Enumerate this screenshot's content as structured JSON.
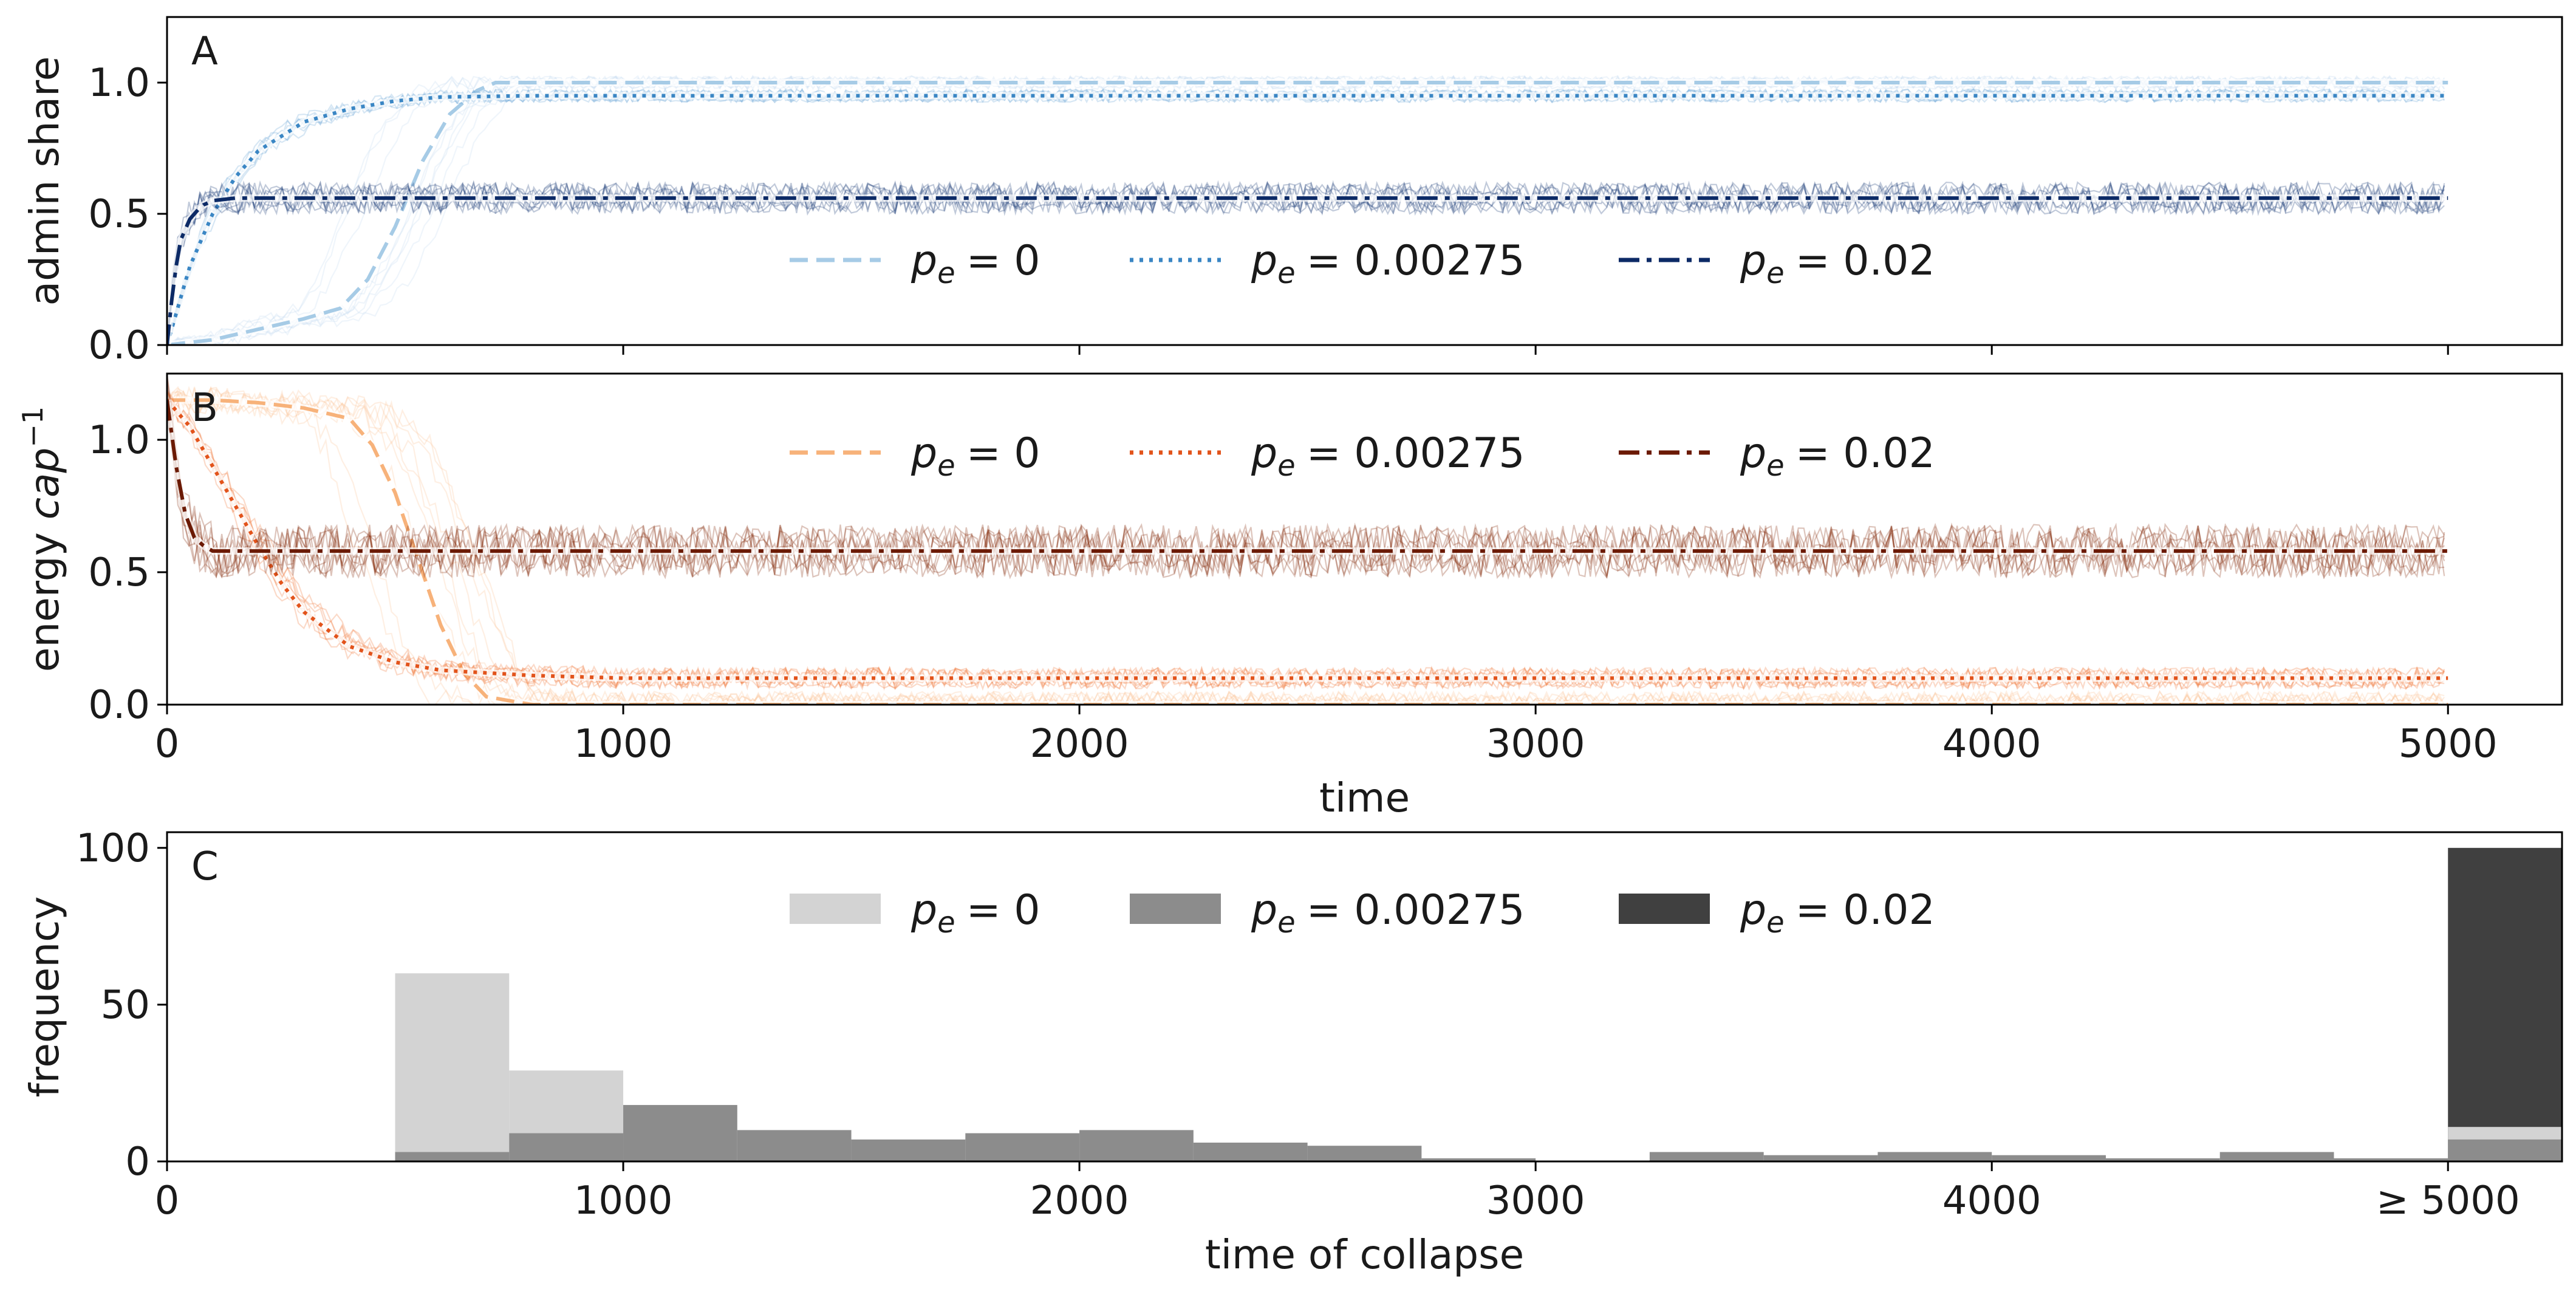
{
  "chart_data": [
    {
      "panel": "A",
      "type": "line",
      "ylabel": "admin share",
      "xlim": [
        0,
        5250
      ],
      "ylim": [
        0,
        1.25
      ],
      "yticks": [
        "0.0",
        "0.5",
        "1.0"
      ],
      "legend_placement": "center",
      "series": [
        {
          "name": "p_e = 0",
          "legend_sym": "p",
          "legend_sub": "e",
          "legend_val": "= 0",
          "style": "dashed",
          "color": "#a6cbe6",
          "band_color": "#c6dcef",
          "t": [
            0,
            100,
            200,
            300,
            380,
            440,
            500,
            560,
            620,
            680,
            720,
            800,
            5000
          ],
          "y": [
            0.0,
            0.02,
            0.06,
            0.1,
            0.14,
            0.25,
            0.45,
            0.7,
            0.88,
            0.97,
            1.0,
            1.0,
            1.0
          ]
        },
        {
          "name": "p_e = 0.00275",
          "legend_sym": "p",
          "legend_sub": "e",
          "legend_val": "= 0.00275",
          "style": "dotted",
          "color": "#3a86c4",
          "band_color": "#6fa9d8",
          "t": [
            0,
            25,
            50,
            100,
            150,
            200,
            300,
            400,
            500,
            600,
            800,
            1000,
            5000
          ],
          "y": [
            0.0,
            0.15,
            0.3,
            0.5,
            0.64,
            0.74,
            0.85,
            0.9,
            0.93,
            0.945,
            0.95,
            0.95,
            0.95
          ]
        },
        {
          "name": "p_e = 0.02",
          "legend_sym": "p",
          "legend_sub": "e",
          "legend_val": "= 0.02",
          "style": "dashdot",
          "color": "#0c2a66",
          "band_color": "#1f3f7a",
          "t": [
            0,
            15,
            30,
            50,
            75,
            100,
            150,
            200,
            5000
          ],
          "y": [
            0.0,
            0.25,
            0.4,
            0.48,
            0.53,
            0.55,
            0.56,
            0.56,
            0.56
          ]
        }
      ]
    },
    {
      "panel": "B",
      "type": "line",
      "ylabel_main": "energy ",
      "ylabel_italic": "cap",
      "ylabel_sup": "−1",
      "xlabel": "time",
      "xlim": [
        0,
        5250
      ],
      "ylim": [
        0,
        1.25
      ],
      "xticks": [
        "0",
        "1000",
        "2000",
        "3000",
        "4000",
        "5000"
      ],
      "yticks": [
        "0.0",
        "0.5",
        "1.0"
      ],
      "legend_placement": "upper center",
      "series": [
        {
          "name": "p_e = 0",
          "legend_sym": "p",
          "legend_sub": "e",
          "legend_val": "= 0",
          "style": "dashed",
          "color": "#f7b27a",
          "band_color": "#fbc79a",
          "t": [
            0,
            50,
            100,
            200,
            300,
            400,
            450,
            500,
            550,
            600,
            650,
            700,
            800,
            5000
          ],
          "y": [
            1.15,
            1.15,
            1.15,
            1.14,
            1.12,
            1.08,
            0.98,
            0.8,
            0.55,
            0.3,
            0.12,
            0.03,
            0.0,
            0.0
          ]
        },
        {
          "name": "p_e = 0.00275",
          "legend_sym": "p",
          "legend_sub": "e",
          "legend_val": "= 0.00275",
          "style": "dotted",
          "color": "#e2531b",
          "band_color": "#f07a3c",
          "t": [
            0,
            50,
            100,
            150,
            200,
            250,
            300,
            400,
            500,
            600,
            800,
            1000,
            5000
          ],
          "y": [
            1.15,
            1.05,
            0.9,
            0.75,
            0.6,
            0.46,
            0.35,
            0.22,
            0.16,
            0.13,
            0.11,
            0.1,
            0.1
          ]
        },
        {
          "name": "p_e = 0.02",
          "legend_sym": "p",
          "legend_sub": "e",
          "legend_val": "= 0.02",
          "style": "dashdot",
          "color": "#6b1a04",
          "band_color": "#842c0a",
          "t": [
            0,
            20,
            40,
            60,
            80,
            100,
            150,
            5000
          ],
          "y": [
            1.15,
            0.9,
            0.72,
            0.63,
            0.6,
            0.58,
            0.58,
            0.58
          ]
        }
      ]
    },
    {
      "panel": "C",
      "type": "bar",
      "xlabel": "time of collapse",
      "ylabel": "frequency",
      "xlim": [
        0,
        5250
      ],
      "ylim": [
        0,
        105
      ],
      "bin_width": 250,
      "xticks": [
        "0",
        "1000",
        "2000",
        "3000",
        "4000",
        "≥ 5000"
      ],
      "yticks": [
        "0",
        "50",
        "100"
      ],
      "legend_placement": "upper center",
      "series": [
        {
          "name": "p_e = 0",
          "legend_sym": "p",
          "legend_sub": "e",
          "legend_val": "= 0",
          "color": "#d3d3d3",
          "bins": [
            [
              500,
              60
            ],
            [
              750,
              29
            ],
            [
              5000,
              11
            ]
          ]
        },
        {
          "name": "p_e = 0.00275",
          "legend_sym": "p",
          "legend_sub": "e",
          "legend_val": "= 0.00275",
          "color": "#8c8c8c",
          "bins": [
            [
              500,
              3
            ],
            [
              750,
              9
            ],
            [
              1000,
              18
            ],
            [
              1250,
              10
            ],
            [
              1500,
              7
            ],
            [
              1750,
              9
            ],
            [
              2000,
              10
            ],
            [
              2250,
              6
            ],
            [
              2500,
              5
            ],
            [
              2750,
              1
            ],
            [
              3250,
              3
            ],
            [
              3500,
              2
            ],
            [
              3750,
              3
            ],
            [
              4000,
              2
            ],
            [
              4250,
              1
            ],
            [
              4500,
              3
            ],
            [
              4750,
              1
            ],
            [
              5000,
              7
            ]
          ]
        },
        {
          "name": "p_e = 0.02",
          "legend_sym": "p",
          "legend_sub": "e",
          "legend_val": "= 0.02",
          "color": "#404040",
          "bins": [
            [
              5000,
              100
            ]
          ]
        }
      ]
    }
  ]
}
